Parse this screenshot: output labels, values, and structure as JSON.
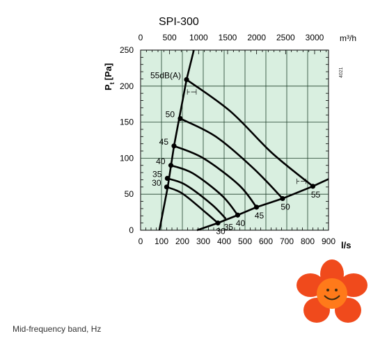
{
  "chart_data": {
    "type": "line",
    "title": "SPI-300",
    "code": "4021",
    "x": {
      "label": "l/s",
      "range": [
        0,
        900
      ],
      "ticks": [
        0,
        100,
        200,
        300,
        400,
        500,
        600,
        700,
        800,
        900
      ]
    },
    "x2": {
      "label": "m³/h",
      "range": [
        0,
        3240
      ],
      "ticks": [
        0,
        500,
        1000,
        1500,
        2000,
        2500,
        3000
      ]
    },
    "y": {
      "label": "Pt [Pa]",
      "label_main": "P",
      "label_sub": "t",
      "label_unit": "[Pa]",
      "range": [
        0,
        250
      ],
      "ticks": [
        0,
        50,
        100,
        150,
        200,
        250
      ]
    },
    "grid": true,
    "background": "#d9efe0",
    "line_color": "#000000",
    "series": [
      {
        "name": "55dB(A)",
        "label": "55dB(A)",
        "role": "sound",
        "points": [
          [
            220,
            209
          ],
          [
            430,
            165
          ],
          [
            630,
            107
          ],
          [
            825,
            61
          ]
        ],
        "end_label": "55"
      },
      {
        "name": "50",
        "label": "50",
        "role": "sound",
        "points": [
          [
            190,
            155
          ],
          [
            360,
            130
          ],
          [
            540,
            86
          ],
          [
            680,
            44
          ]
        ],
        "end_label": "50"
      },
      {
        "name": "45",
        "label": "45",
        "role": "sound",
        "points": [
          [
            160,
            117
          ],
          [
            300,
            100
          ],
          [
            470,
            63
          ],
          [
            555,
            32
          ]
        ],
        "end_label": "45"
      },
      {
        "name": "40",
        "label": "40",
        "role": "sound",
        "points": [
          [
            145,
            90
          ],
          [
            250,
            79
          ],
          [
            390,
            48
          ],
          [
            465,
            21
          ]
        ],
        "end_label": "40"
      },
      {
        "name": "35",
        "label": "35",
        "role": "sound",
        "points": [
          [
            128,
            72
          ],
          [
            215,
            63
          ],
          [
            340,
            36
          ],
          [
            408,
            16
          ]
        ],
        "end_label": "35"
      },
      {
        "name": "30",
        "label": "30",
        "role": "sound",
        "points": [
          [
            125,
            60
          ],
          [
            200,
            51
          ],
          [
            310,
            25
          ],
          [
            370,
            10
          ]
        ],
        "end_label": "30"
      },
      {
        "name": "",
        "role": "boundary-left",
        "points": [
          [
            90,
            0
          ],
          [
            130,
            60
          ],
          [
            160,
            117
          ],
          [
            220,
            209
          ],
          [
            255,
            250
          ]
        ]
      },
      {
        "name": "",
        "role": "boundary-right",
        "points": [
          [
            270,
            0
          ],
          [
            370,
            10
          ],
          [
            465,
            21
          ],
          [
            555,
            32
          ],
          [
            680,
            44
          ],
          [
            825,
            61
          ],
          [
            900,
            71
          ]
        ]
      }
    ],
    "markers": [
      {
        "x": 220,
        "y": 209
      },
      {
        "x": 190,
        "y": 155
      },
      {
        "x": 160,
        "y": 117
      },
      {
        "x": 145,
        "y": 90
      },
      {
        "x": 128,
        "y": 72
      },
      {
        "x": 125,
        "y": 60
      },
      {
        "x": 370,
        "y": 10
      },
      {
        "x": 465,
        "y": 21
      },
      {
        "x": 555,
        "y": 32
      },
      {
        "x": 680,
        "y": 44
      },
      {
        "x": 825,
        "y": 61
      }
    ],
    "annotations": [
      {
        "text": "⊦⊣",
        "x": 245,
        "y": 188
      },
      {
        "text": "⊦⊣",
        "x": 770,
        "y": 64
      }
    ]
  },
  "caption": "Mid-frequency band, Hz",
  "decoration": {
    "icon": "smiling-flower-icon",
    "petal_color": "#f04a1c",
    "center_color": "#ff7a1a"
  }
}
